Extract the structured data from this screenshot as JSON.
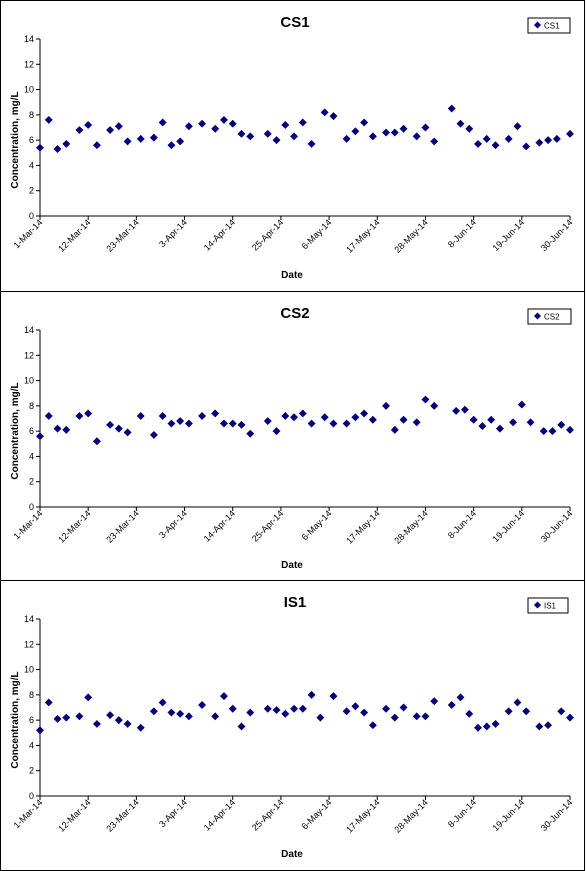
{
  "chart_data": [
    {
      "type": "scatter",
      "title": "CS1",
      "xlabel": "Date",
      "ylabel": "Concentration, mg/L",
      "ylim": [
        0,
        14
      ],
      "yticks": [
        "0",
        "2",
        "4",
        "6",
        "8",
        "10",
        "12",
        "14"
      ],
      "xlim": [
        "1-Mar-14",
        "30-Jun-14"
      ],
      "xticks": [
        "1-Mar-14",
        "12-Mar-14",
        "23-Mar-14",
        "3-Apr-14",
        "14-Apr-14",
        "25-Apr-14",
        "6-May-14",
        "17-May-14",
        "28-May-14",
        "8-Jun-14",
        "19-Jun-14",
        "30-Jun-14"
      ],
      "grid": false,
      "legend": "top-right",
      "marker_color": "#000080",
      "series": [
        {
          "name": "CS1",
          "points": [
            [
              "1-Mar-14",
              5.4
            ],
            [
              "3-Mar-14",
              7.6
            ],
            [
              "5-Mar-14",
              5.3
            ],
            [
              "7-Mar-14",
              5.7
            ],
            [
              "10-Mar-14",
              6.8
            ],
            [
              "12-Mar-14",
              7.2
            ],
            [
              "14-Mar-14",
              5.6
            ],
            [
              "17-Mar-14",
              6.8
            ],
            [
              "19-Mar-14",
              7.1
            ],
            [
              "21-Mar-14",
              5.9
            ],
            [
              "24-Mar-14",
              6.1
            ],
            [
              "27-Mar-14",
              6.2
            ],
            [
              "29-Mar-14",
              7.4
            ],
            [
              "31-Mar-14",
              5.6
            ],
            [
              "2-Apr-14",
              5.9
            ],
            [
              "4-Apr-14",
              7.1
            ],
            [
              "7-Apr-14",
              7.3
            ],
            [
              "10-Apr-14",
              6.9
            ],
            [
              "12-Apr-14",
              7.6
            ],
            [
              "14-Apr-14",
              7.3
            ],
            [
              "16-Apr-14",
              6.5
            ],
            [
              "18-Apr-14",
              6.3
            ],
            [
              "22-Apr-14",
              6.5
            ],
            [
              "24-Apr-14",
              6.0
            ],
            [
              "26-Apr-14",
              7.2
            ],
            [
              "28-Apr-14",
              6.3
            ],
            [
              "30-Apr-14",
              7.4
            ],
            [
              "2-May-14",
              5.7
            ],
            [
              "5-May-14",
              8.2
            ],
            [
              "7-May-14",
              7.9
            ],
            [
              "10-May-14",
              6.1
            ],
            [
              "12-May-14",
              6.7
            ],
            [
              "14-May-14",
              7.4
            ],
            [
              "16-May-14",
              6.3
            ],
            [
              "19-May-14",
              6.6
            ],
            [
              "21-May-14",
              6.6
            ],
            [
              "23-May-14",
              6.9
            ],
            [
              "26-May-14",
              6.3
            ],
            [
              "28-May-14",
              7.0
            ],
            [
              "30-May-14",
              5.9
            ],
            [
              "3-Jun-14",
              8.5
            ],
            [
              "5-Jun-14",
              7.3
            ],
            [
              "7-Jun-14",
              6.9
            ],
            [
              "9-Jun-14",
              5.7
            ],
            [
              "11-Jun-14",
              6.1
            ],
            [
              "13-Jun-14",
              5.6
            ],
            [
              "16-Jun-14",
              6.1
            ],
            [
              "18-Jun-14",
              7.1
            ],
            [
              "20-Jun-14",
              5.5
            ],
            [
              "23-Jun-14",
              5.8
            ],
            [
              "25-Jun-14",
              6.0
            ],
            [
              "27-Jun-14",
              6.1
            ],
            [
              "30-Jun-14",
              6.5
            ]
          ]
        }
      ]
    },
    {
      "type": "scatter",
      "title": "CS2",
      "xlabel": "Date",
      "ylabel": "Concentration, mg/L",
      "ylim": [
        0,
        14
      ],
      "yticks": [
        "0",
        "2",
        "4",
        "6",
        "8",
        "10",
        "12",
        "14"
      ],
      "xlim": [
        "1-Mar-14",
        "30-Jun-14"
      ],
      "xticks": [
        "1-Mar-14",
        "12-Mar-14",
        "23-Mar-14",
        "3-Apr-14",
        "14-Apr-14",
        "25-Apr-14",
        "6-May-14",
        "17-May-14",
        "28-May-14",
        "8-Jun-14",
        "19-Jun-14",
        "30-Jun-14"
      ],
      "grid": false,
      "legend": "top-right",
      "marker_color": "#000080",
      "series": [
        {
          "name": "CS2",
          "points": [
            [
              "1-Mar-14",
              5.6
            ],
            [
              "3-Mar-14",
              7.2
            ],
            [
              "5-Mar-14",
              6.2
            ],
            [
              "7-Mar-14",
              6.1
            ],
            [
              "10-Mar-14",
              7.2
            ],
            [
              "12-Mar-14",
              7.4
            ],
            [
              "14-Mar-14",
              5.2
            ],
            [
              "17-Mar-14",
              6.5
            ],
            [
              "19-Mar-14",
              6.2
            ],
            [
              "21-Mar-14",
              5.9
            ],
            [
              "24-Mar-14",
              7.2
            ],
            [
              "27-Mar-14",
              5.7
            ],
            [
              "29-Mar-14",
              7.2
            ],
            [
              "31-Mar-14",
              6.6
            ],
            [
              "2-Apr-14",
              6.8
            ],
            [
              "4-Apr-14",
              6.6
            ],
            [
              "7-Apr-14",
              7.2
            ],
            [
              "10-Apr-14",
              7.4
            ],
            [
              "12-Apr-14",
              6.6
            ],
            [
              "14-Apr-14",
              6.6
            ],
            [
              "16-Apr-14",
              6.5
            ],
            [
              "18-Apr-14",
              5.8
            ],
            [
              "22-Apr-14",
              6.8
            ],
            [
              "24-Apr-14",
              6.0
            ],
            [
              "26-Apr-14",
              7.2
            ],
            [
              "28-Apr-14",
              7.1
            ],
            [
              "30-Apr-14",
              7.4
            ],
            [
              "2-May-14",
              6.6
            ],
            [
              "5-May-14",
              7.1
            ],
            [
              "7-May-14",
              6.6
            ],
            [
              "10-May-14",
              6.6
            ],
            [
              "12-May-14",
              7.1
            ],
            [
              "14-May-14",
              7.4
            ],
            [
              "16-May-14",
              6.9
            ],
            [
              "19-May-14",
              8.0
            ],
            [
              "21-May-14",
              6.1
            ],
            [
              "23-May-14",
              6.9
            ],
            [
              "26-May-14",
              6.7
            ],
            [
              "28-May-14",
              8.5
            ],
            [
              "30-May-14",
              8.0
            ],
            [
              "4-Jun-14",
              7.6
            ],
            [
              "6-Jun-14",
              7.7
            ],
            [
              "8-Jun-14",
              6.9
            ],
            [
              "10-Jun-14",
              6.4
            ],
            [
              "12-Jun-14",
              6.9
            ],
            [
              "14-Jun-14",
              6.2
            ],
            [
              "17-Jun-14",
              6.7
            ],
            [
              "19-Jun-14",
              8.1
            ],
            [
              "21-Jun-14",
              6.7
            ],
            [
              "24-Jun-14",
              6.0
            ],
            [
              "26-Jun-14",
              6.0
            ],
            [
              "28-Jun-14",
              6.5
            ],
            [
              "30-Jun-14",
              6.1
            ]
          ]
        }
      ]
    },
    {
      "type": "scatter",
      "title": "IS1",
      "xlabel": "Date",
      "ylabel": "Concentration, mg/L",
      "ylim": [
        0,
        14
      ],
      "yticks": [
        "0",
        "2",
        "4",
        "6",
        "8",
        "10",
        "12",
        "14"
      ],
      "xlim": [
        "1-Mar-14",
        "30-Jun-14"
      ],
      "xticks": [
        "1-Mar-14",
        "12-Mar-14",
        "23-Mar-14",
        "3-Apr-14",
        "14-Apr-14",
        "25-Apr-14",
        "6-May-14",
        "17-May-14",
        "28-May-14",
        "8-Jun-14",
        "19-Jun-14",
        "30-Jun-14"
      ],
      "grid": false,
      "legend": "top-right",
      "marker_color": "#000080",
      "series": [
        {
          "name": "IS1",
          "points": [
            [
              "1-Mar-14",
              5.2
            ],
            [
              "3-Mar-14",
              7.4
            ],
            [
              "5-Mar-14",
              6.1
            ],
            [
              "7-Mar-14",
              6.2
            ],
            [
              "10-Mar-14",
              6.3
            ],
            [
              "12-Mar-14",
              7.8
            ],
            [
              "14-Mar-14",
              5.7
            ],
            [
              "17-Mar-14",
              6.4
            ],
            [
              "19-Mar-14",
              6.0
            ],
            [
              "21-Mar-14",
              5.7
            ],
            [
              "24-Mar-14",
              5.4
            ],
            [
              "27-Mar-14",
              6.7
            ],
            [
              "29-Mar-14",
              7.4
            ],
            [
              "31-Mar-14",
              6.6
            ],
            [
              "2-Apr-14",
              6.5
            ],
            [
              "4-Apr-14",
              6.3
            ],
            [
              "7-Apr-14",
              7.2
            ],
            [
              "10-Apr-14",
              6.3
            ],
            [
              "12-Apr-14",
              7.9
            ],
            [
              "14-Apr-14",
              6.9
            ],
            [
              "16-Apr-14",
              5.5
            ],
            [
              "18-Apr-14",
              6.6
            ],
            [
              "22-Apr-14",
              6.9
            ],
            [
              "24-Apr-14",
              6.8
            ],
            [
              "26-Apr-14",
              6.5
            ],
            [
              "28-Apr-14",
              6.9
            ],
            [
              "30-Apr-14",
              6.9
            ],
            [
              "2-May-14",
              8.0
            ],
            [
              "4-May-14",
              6.2
            ],
            [
              "7-May-14",
              7.9
            ],
            [
              "10-May-14",
              6.7
            ],
            [
              "12-May-14",
              7.1
            ],
            [
              "14-May-14",
              6.6
            ],
            [
              "16-May-14",
              5.6
            ],
            [
              "19-May-14",
              6.9
            ],
            [
              "21-May-14",
              6.2
            ],
            [
              "23-May-14",
              7.0
            ],
            [
              "26-May-14",
              6.3
            ],
            [
              "28-May-14",
              6.3
            ],
            [
              "30-May-14",
              7.5
            ],
            [
              "3-Jun-14",
              7.2
            ],
            [
              "5-Jun-14",
              7.8
            ],
            [
              "7-Jun-14",
              6.5
            ],
            [
              "9-Jun-14",
              5.4
            ],
            [
              "11-Jun-14",
              5.5
            ],
            [
              "13-Jun-14",
              5.7
            ],
            [
              "16-Jun-14",
              6.7
            ],
            [
              "18-Jun-14",
              7.4
            ],
            [
              "20-Jun-14",
              6.7
            ],
            [
              "23-Jun-14",
              5.5
            ],
            [
              "25-Jun-14",
              5.6
            ],
            [
              "28-Jun-14",
              6.7
            ],
            [
              "30-Jun-14",
              6.2
            ]
          ]
        }
      ]
    }
  ]
}
